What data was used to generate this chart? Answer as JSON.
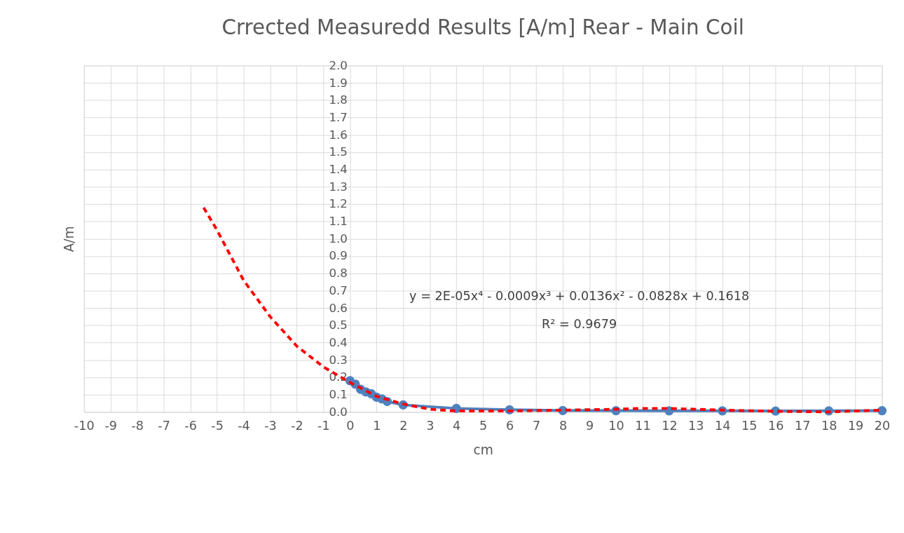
{
  "chart_data": {
    "type": "line",
    "title": "Crrected Measuredd Results [A/m] Rear - Main Coil",
    "xlabel": "cm",
    "ylabel": "A/m",
    "xlim": [
      -10,
      20
    ],
    "xticks": [
      -10,
      -9,
      -8,
      -7,
      -6,
      -5,
      -4,
      -3,
      -2,
      -1,
      0,
      1,
      2,
      3,
      4,
      5,
      6,
      7,
      8,
      9,
      10,
      11,
      12,
      13,
      14,
      15,
      16,
      17,
      18,
      19,
      20
    ],
    "ylim": [
      0,
      2
    ],
    "yticks": [
      {
        "value": 0,
        "label": "0.0"
      },
      {
        "value": 0.1,
        "label": "0.1"
      },
      {
        "value": 0.2,
        "label": "0.2"
      },
      {
        "value": 0.3,
        "label": "0.3"
      },
      {
        "value": 0.4,
        "label": "0.4"
      },
      {
        "value": 0.5,
        "label": "0.5"
      },
      {
        "value": 0.6,
        "label": "0.6"
      },
      {
        "value": 0.7,
        "label": "0.7"
      },
      {
        "value": 0.8,
        "label": "0.8"
      },
      {
        "value": 0.9,
        "label": "0.9"
      },
      {
        "value": 1,
        "label": "1.0"
      },
      {
        "value": 1.1,
        "label": "1.1"
      },
      {
        "value": 1.2,
        "label": "1.2"
      },
      {
        "value": 1.3,
        "label": "1.3"
      },
      {
        "value": 1.4,
        "label": "1.4"
      },
      {
        "value": 1.5,
        "label": "1.5"
      },
      {
        "value": 1.6,
        "label": "1.6"
      },
      {
        "value": 1.7,
        "label": "1.7"
      },
      {
        "value": 1.8,
        "label": "1.8"
      },
      {
        "value": 1.9,
        "label": "1.9"
      },
      {
        "value": 2,
        "label": "2.0"
      }
    ],
    "grid": true,
    "series": [
      {
        "color": "#4f81bd",
        "marker": "circle",
        "line_style": "solid",
        "x": [
          0,
          0.2,
          0.4,
          0.6,
          0.8,
          1.0,
          1.2,
          1.4,
          2,
          4,
          6,
          8,
          10,
          12,
          14,
          16,
          18,
          20
        ],
        "values": [
          0.18,
          0.16,
          0.13,
          0.115,
          0.105,
          0.085,
          0.075,
          0.06,
          0.04,
          0.02,
          0.012,
          0.008,
          0.007,
          0.006,
          0.006,
          0.005,
          0.006,
          0.007
        ]
      },
      {
        "color": "#ff0000",
        "marker": "none",
        "line_style": "dashed",
        "x": [
          -5.5,
          -5,
          -4,
          -3,
          -2,
          -1,
          0,
          1,
          2,
          3,
          4,
          6,
          8,
          10,
          11,
          12,
          14,
          16,
          18,
          20
        ],
        "values": [
          1.18,
          1.05,
          0.76,
          0.55,
          0.38,
          0.26,
          0.17,
          0.09,
          0.045,
          0.015,
          0.005,
          0.005,
          0.01,
          0.015,
          0.02,
          0.02,
          0.01,
          0.003,
          0.0,
          0.01
        ]
      }
    ],
    "annotations": [
      "y = 2E-05x⁴ - 0.0009x³ + 0.0136x² - 0.0828x + 0.1618",
      "R² = 0.9679"
    ]
  }
}
